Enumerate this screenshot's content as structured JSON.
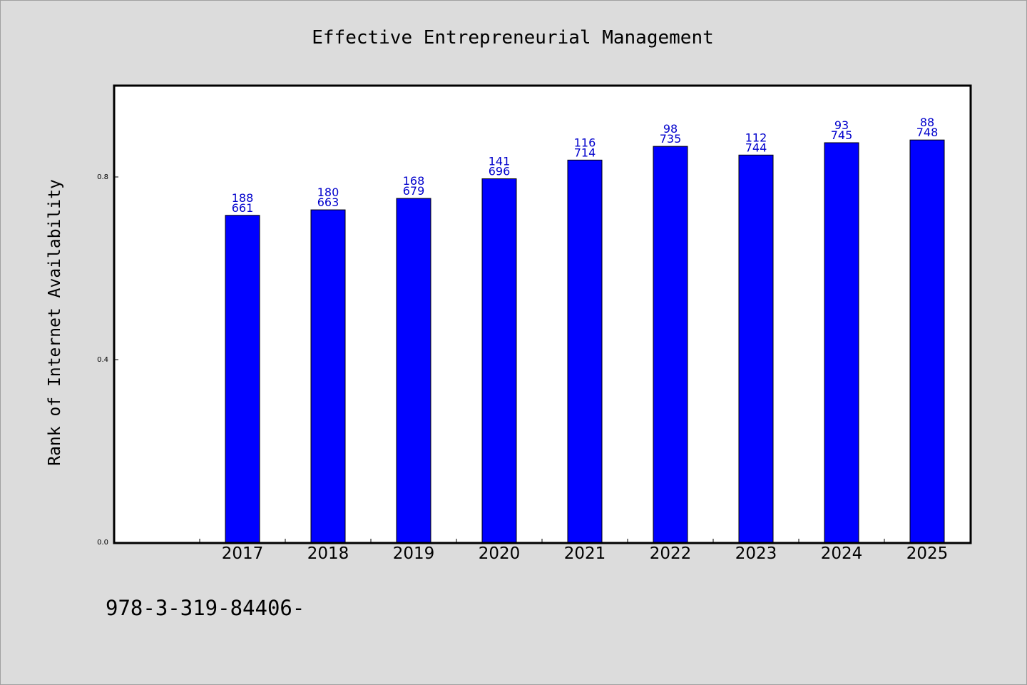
{
  "chart_data": {
    "type": "bar",
    "title": "Effective Entrepreneurial Management",
    "xlabel": "",
    "ylabel": "Rank of Internet Availability",
    "categories": [
      "2017",
      "2018",
      "2019",
      "2020",
      "2021",
      "2022",
      "2023",
      "2024",
      "2025"
    ],
    "values": [
      0.716,
      0.728,
      0.753,
      0.796,
      0.837,
      0.867,
      0.848,
      0.875,
      0.881
    ],
    "bar_labels_top": [
      "188",
      "180",
      "168",
      "141",
      "116",
      "98",
      "112",
      "93",
      "88"
    ],
    "bar_labels_bottom": [
      "661",
      "663",
      "679",
      "696",
      "714",
      "735",
      "744",
      "745",
      "748"
    ],
    "yticks": [
      0.0,
      0.4,
      0.8
    ],
    "ytick_labels": [
      "0.0",
      "0.4",
      "0.8"
    ],
    "ylim": [
      0,
      1.0
    ],
    "grid": false,
    "legend": "none",
    "bar_color": "#0000ff",
    "label_color": "#0000cc"
  },
  "footer_text": "978-3-319-84406-"
}
